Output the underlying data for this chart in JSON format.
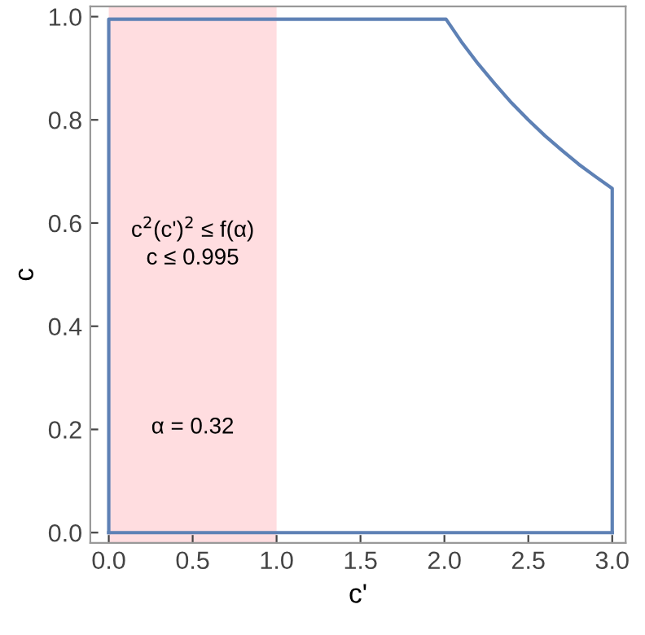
{
  "chart_data": {
    "type": "line",
    "xlabel": "c'",
    "ylabel": "c",
    "series": [
      {
        "color": "#5e81b5",
        "x": [
          0,
          0,
          2.01,
          2.1,
          2.2,
          2.3,
          2.4,
          2.5,
          2.6,
          2.7,
          2.8,
          2.9,
          3.0,
          3.0
        ],
        "values": [
          0,
          0.995,
          0.995,
          0.952,
          0.909,
          0.87,
          0.833,
          0.8,
          0.769,
          0.741,
          0.714,
          0.69,
          0.667,
          0
        ]
      },
      {
        "color": "#5e81b5",
        "x": [
          0,
          3.0
        ],
        "values": [
          0,
          0
        ]
      }
    ],
    "bands": [
      {
        "axis": "x",
        "from": 0,
        "to": 1,
        "color": "#ffdde0"
      }
    ],
    "annotations": [
      "c$^{2}$(c')$^{2}$ ≤ f(α)",
      "c ≤ 0.995",
      "α = 0.32"
    ],
    "xlim": [
      -0.11,
      3.08
    ],
    "ylim": [
      -0.02,
      1.02
    ],
    "xticks": [
      {
        "value": 0,
        "label": "0.0"
      },
      0.5,
      {
        "value": 1,
        "label": "1.0"
      },
      1.5,
      {
        "value": 2,
        "label": "2.0"
      },
      2.5,
      {
        "value": 3,
        "label": "3.0"
      }
    ],
    "yticks": [
      {
        "value": 0,
        "label": "0.0"
      },
      0.2,
      0.4,
      0.6,
      0.8,
      {
        "value": 1,
        "label": "1.0"
      }
    ],
    "grid": false,
    "legend": false,
    "marker": "none",
    "line_style": "solid"
  }
}
